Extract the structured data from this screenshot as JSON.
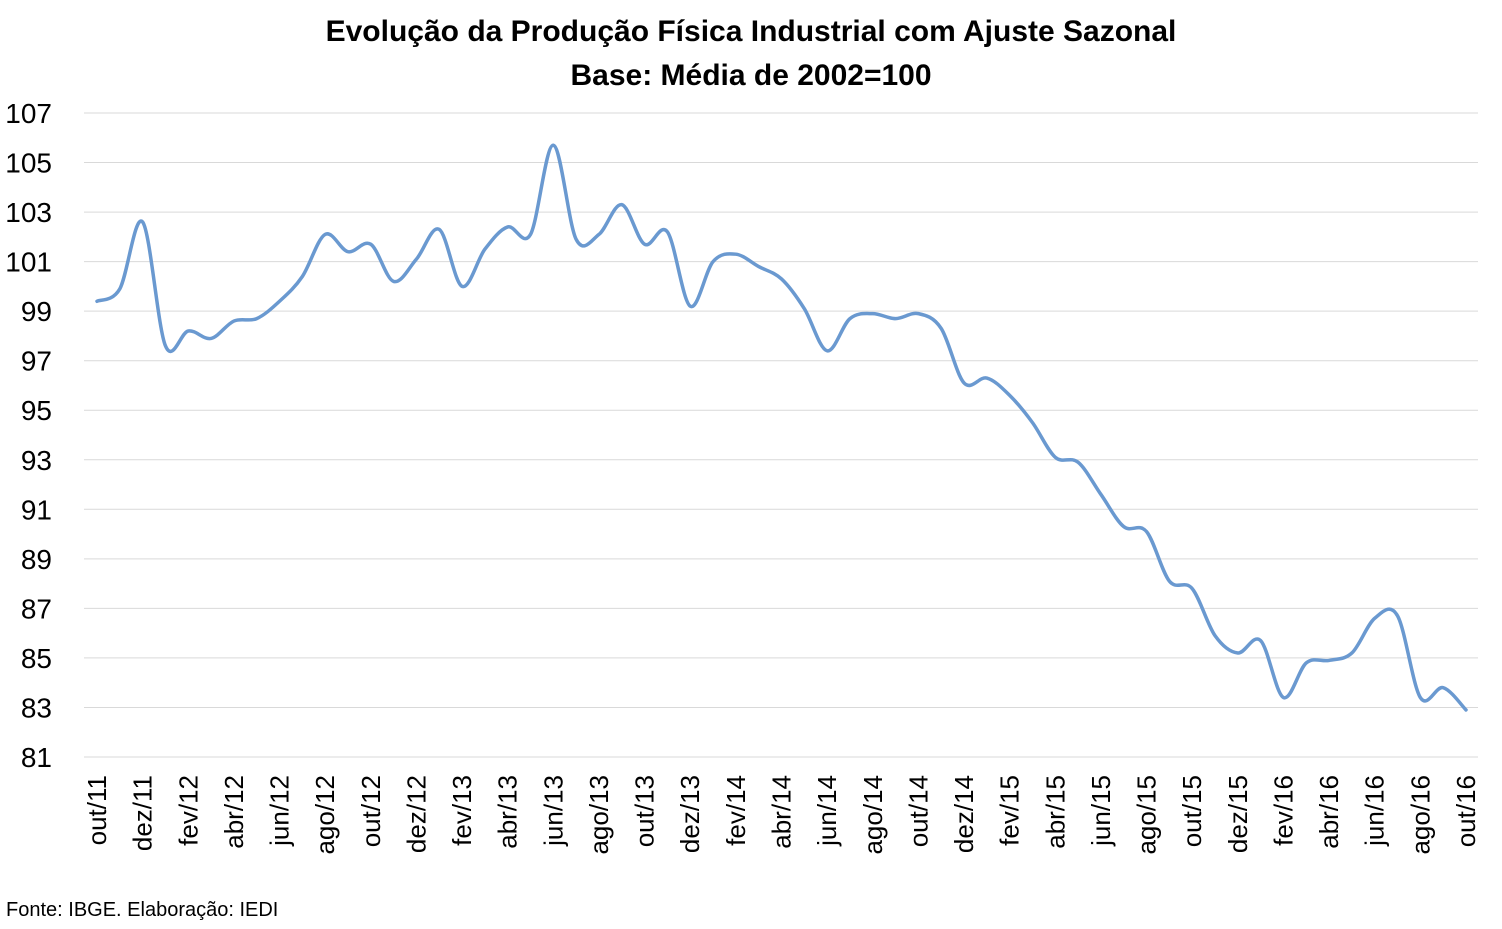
{
  "chart_data": {
    "type": "line",
    "title": "Evolução da Produção Física Industrial com Ajuste Sazonal",
    "subtitle": "Base: Média de 2002=100",
    "xlabel": "",
    "ylabel": "",
    "ylim": [
      81,
      107
    ],
    "yticks": [
      81,
      83,
      85,
      87,
      89,
      91,
      93,
      95,
      97,
      99,
      101,
      103,
      105,
      107
    ],
    "grid": true,
    "legend": "none",
    "line_color": "#6A99D0",
    "x": [
      "out/11",
      "nov/11",
      "dez/11",
      "jan/12",
      "fev/12",
      "mar/12",
      "abr/12",
      "mai/12",
      "jun/12",
      "jul/12",
      "ago/12",
      "set/12",
      "out/12",
      "nov/12",
      "dez/12",
      "jan/13",
      "fev/13",
      "mar/13",
      "abr/13",
      "mai/13",
      "jun/13",
      "jul/13",
      "ago/13",
      "set/13",
      "out/13",
      "nov/13",
      "dez/13",
      "jan/14",
      "fev/14",
      "mar/14",
      "abr/14",
      "mai/14",
      "jun/14",
      "jul/14",
      "ago/14",
      "set/14",
      "out/14",
      "nov/14",
      "dez/14",
      "jan/15",
      "fev/15",
      "mar/15",
      "abr/15",
      "mai/15",
      "jun/15",
      "jul/15",
      "ago/15",
      "set/15",
      "out/15",
      "nov/15",
      "dez/15",
      "jan/16",
      "fev/16",
      "mar/16",
      "abr/16",
      "mai/16",
      "jun/16",
      "jul/16",
      "ago/16",
      "set/16",
      "out/16"
    ],
    "xtick_labels": [
      "out/11",
      "dez/11",
      "fev/12",
      "abr/12",
      "jun/12",
      "ago/12",
      "out/12",
      "dez/12",
      "fev/13",
      "abr/13",
      "jun/13",
      "ago/13",
      "out/13",
      "dez/13",
      "fev/14",
      "abr/14",
      "jun/14",
      "ago/14",
      "out/14",
      "dez/14",
      "fev/15",
      "abr/15",
      "jun/15",
      "ago/15",
      "out/15",
      "dez/15",
      "fev/16",
      "abr/16",
      "jun/16",
      "ago/16",
      "out/16"
    ],
    "series": [
      {
        "name": "",
        "values": [
          99.4,
          99.9,
          102.6,
          97.6,
          98.2,
          97.9,
          98.6,
          98.7,
          99.4,
          100.4,
          102.1,
          101.4,
          101.7,
          100.2,
          101.1,
          102.3,
          100.0,
          101.5,
          102.4,
          102.1,
          105.7,
          101.9,
          102.1,
          103.3,
          101.7,
          102.2,
          99.2,
          101.0,
          101.3,
          100.8,
          100.3,
          99.1,
          97.4,
          98.7,
          98.9,
          98.7,
          98.9,
          98.3,
          96.1,
          96.3,
          95.6,
          94.5,
          93.1,
          92.9,
          91.6,
          90.3,
          90.1,
          88.1,
          87.8,
          85.9,
          85.2,
          85.7,
          83.4,
          84.8,
          84.9,
          85.2,
          86.6,
          86.7,
          83.4,
          83.8,
          82.9
        ]
      }
    ]
  },
  "footer": {
    "source": "Fonte: IBGE. Elaboração: IEDI"
  }
}
